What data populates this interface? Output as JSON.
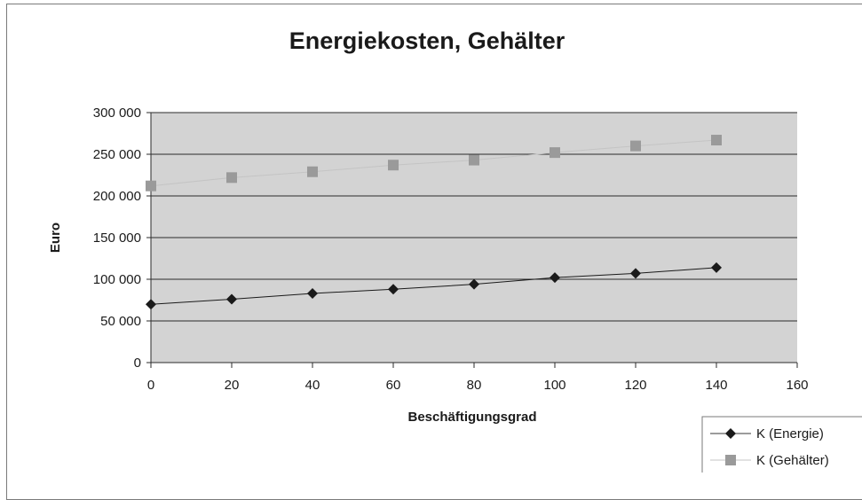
{
  "chart_data": {
    "type": "line",
    "title": "Energiekosten,  Gehälter",
    "xlabel": "Beschäftigungsgrad",
    "ylabel": "Euro",
    "xlim": [
      0,
      160
    ],
    "ylim": [
      0,
      300000
    ],
    "x_ticks": [
      "0",
      "20",
      "40",
      "60",
      "80",
      "100",
      "120",
      "140",
      "160"
    ],
    "y_ticks": [
      "0",
      "50 000",
      "100 000",
      "150 000",
      "200 000",
      "250 000",
      "300 000"
    ],
    "grid": true,
    "legend_position": "bottom-right",
    "x": [
      0,
      20,
      40,
      60,
      80,
      100,
      120,
      140
    ],
    "series": [
      {
        "name": "K (Energie)",
        "marker": "diamond",
        "color": "#1a1a1a",
        "values": [
          70000,
          76000,
          83000,
          88000,
          94000,
          102000,
          107000,
          114000
        ]
      },
      {
        "name": "K (Gehälter)",
        "marker": "square",
        "color": "#9a9a9a",
        "values": [
          212000,
          222000,
          229000,
          237000,
          243000,
          252000,
          260000,
          267000
        ]
      }
    ]
  }
}
